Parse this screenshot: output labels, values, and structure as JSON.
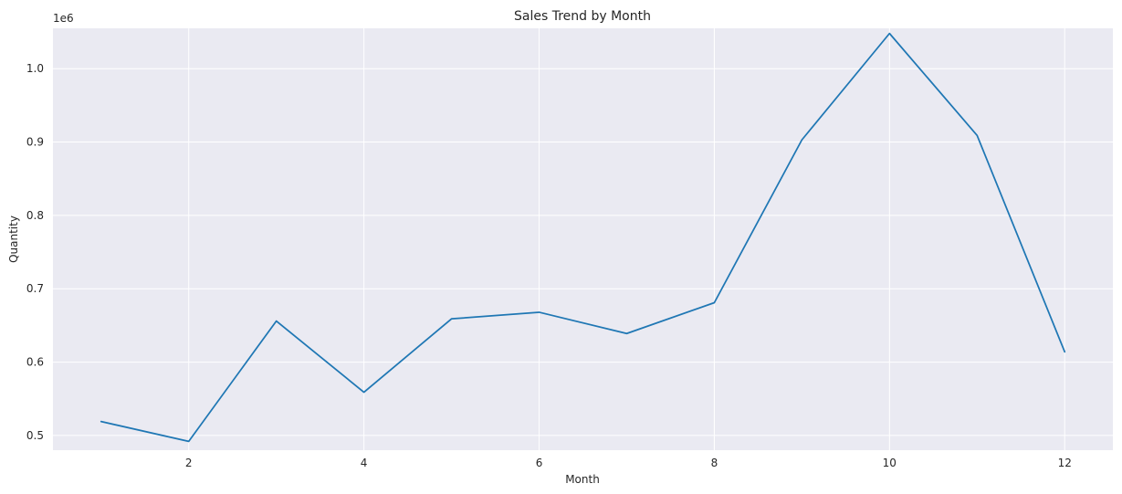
{
  "chart_data": {
    "type": "line",
    "title": "Sales Trend by Month",
    "xlabel": "Month",
    "ylabel": "Quantity",
    "y_offset_label": "1e6",
    "xlim": [
      0.45,
      12.55
    ],
    "ylim": [
      0.48,
      1.055
    ],
    "x_ticks": [
      2,
      4,
      6,
      8,
      10,
      12
    ],
    "x_tick_labels": [
      "2",
      "4",
      "6",
      "8",
      "10",
      "12"
    ],
    "y_ticks": [
      0.5,
      0.6,
      0.7,
      0.8,
      0.9,
      1.0
    ],
    "y_tick_labels": [
      "0.5",
      "0.6",
      "0.7",
      "0.8",
      "0.9",
      "1.0"
    ],
    "grid": true,
    "series": [
      {
        "x": [
          1,
          2,
          3,
          4,
          5,
          6,
          7,
          8,
          9,
          10,
          11,
          12
        ],
        "values": [
          0.519,
          0.492,
          0.656,
          0.559,
          0.659,
          0.668,
          0.639,
          0.681,
          0.903,
          1.048,
          0.909,
          0.614
        ],
        "color": "#1f77b4"
      }
    ]
  }
}
